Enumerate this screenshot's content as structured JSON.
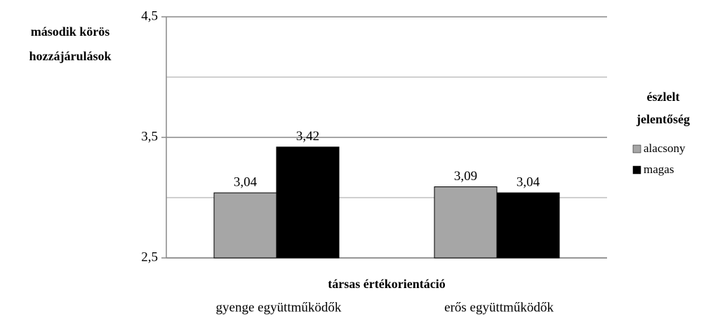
{
  "chart_data": {
    "type": "bar",
    "y_label": [
      "második körös",
      "hozzájárulások"
    ],
    "x_label": "társas értékorientáció",
    "legend_title": [
      "észlelt",
      "jelentőség"
    ],
    "legend_position": "right",
    "categories": [
      "gyenge együttműködők",
      "erős együttműködők"
    ],
    "series": [
      {
        "name": "alacsony",
        "color": "#a6a6a6",
        "values": [
          3.04,
          3.09
        ],
        "value_labels": [
          "3,04",
          "3,09"
        ]
      },
      {
        "name": "magas",
        "color": "#000000",
        "values": [
          3.42,
          3.04
        ],
        "value_labels": [
          "3,42",
          "3,04"
        ]
      }
    ],
    "ylim": [
      2.5,
      4.5
    ],
    "yticks": [
      {
        "value": 2.5,
        "label": "2,5"
      },
      {
        "value": 3.5,
        "label": "3,5"
      },
      {
        "value": 4.5,
        "label": "4,5"
      }
    ],
    "minor_gridlines": [
      3,
      4
    ],
    "grid": true
  }
}
